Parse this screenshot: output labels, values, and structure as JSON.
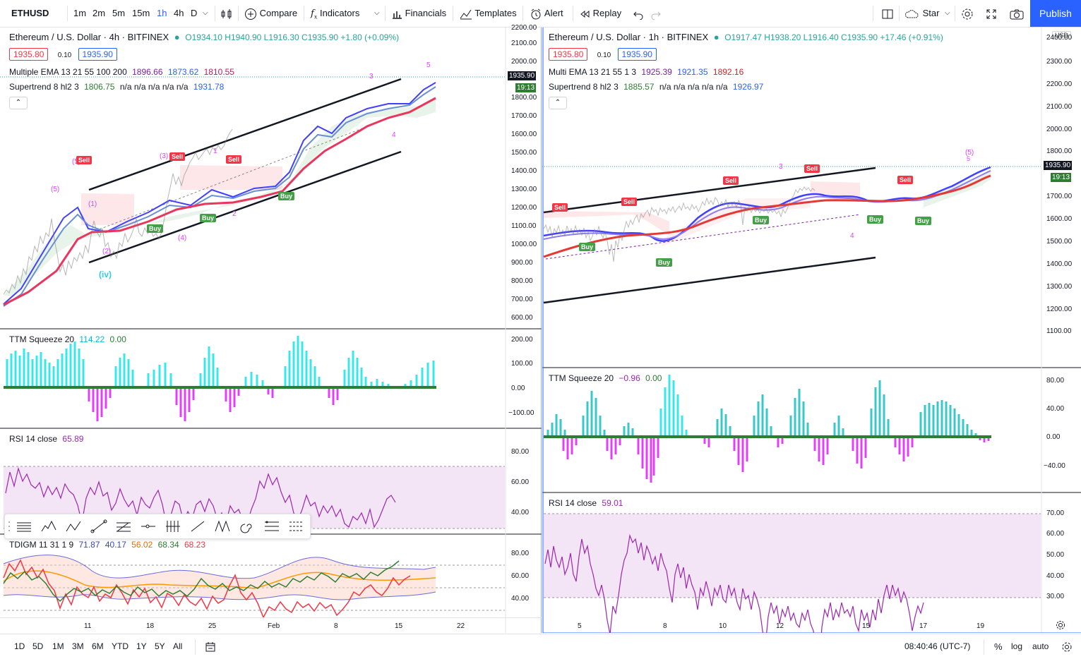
{
  "toolbar": {
    "symbol": "ETHUSD",
    "intervals": [
      "1m",
      "2m",
      "5m",
      "15m",
      "1h",
      "4h",
      "D"
    ],
    "active_interval": "1h",
    "compare": "Compare",
    "indicators": "Indicators",
    "financials": "Financials",
    "templates": "Templates",
    "alert": "Alert",
    "replay": "Replay",
    "star": "Star",
    "publish": "Publish"
  },
  "left_chart": {
    "title": "Ethereum / U.S. Dollar · 4h · BITFINEX",
    "ohlc": "O1934.10 H1940.90 L1916.30 C1935.90 +1.80 (+0.09%)",
    "bid": "1935.80",
    "spread": "0.10",
    "ask": "1935.90",
    "ema_label": "Multiple EMA 13 21 55 100 200",
    "ema_values": [
      "1896.66",
      "1873.62",
      "1810.55"
    ],
    "supertrend_label": "Supertrend 8 hl2 3",
    "supertrend_values": "1806.75",
    "supertrend_na": "n/a n/a n/a n/a n/a",
    "supertrend_last": "1931.78",
    "price_tag": "1935.90",
    "time_tag": "19:13",
    "yaxis": [
      "2200.00",
      "2100.00",
      "2000.00",
      "1800.00",
      "1700.00",
      "1600.00",
      "1500.00",
      "1400.00",
      "1300.00",
      "1200.00",
      "1100.00",
      "1000.00",
      "900.00",
      "800.00",
      "700.00",
      "600.00"
    ],
    "ttm_label": "TTM Squeeze 20",
    "ttm_v1": "114.22",
    "ttm_v2": "0.00",
    "ttm_axis": [
      "200.00",
      "100.00",
      "0.00",
      "−100.00"
    ],
    "rsi_label": "RSI 14 close",
    "rsi_value": "65.89",
    "rsi_axis": [
      "80.00",
      "60.00",
      "40.00"
    ],
    "tdi_label": "TDIGM 11 31 1 9",
    "tdi_values": [
      "71.87",
      "40.17",
      "56.02",
      "68.34",
      "68.23"
    ],
    "tdi_axis": [
      "80.00",
      "60.00",
      "40.00"
    ],
    "xaxis": [
      "11",
      "18",
      "25",
      "Feb",
      "8",
      "15",
      "22"
    ],
    "waves": [
      "(5)",
      "(5)",
      "(iv)",
      "(1)",
      "(2)",
      "(3)",
      "(4)",
      "1",
      "2",
      "3",
      "4",
      "5"
    ],
    "signals": {
      "sell": "Sell",
      "buy": "Buy"
    }
  },
  "right_chart": {
    "title": "Ethereum / U.S. Dollar · 1h · BITFINEX",
    "ohlc": "O1917.47 H1938.20 L1916.40 C1935.90 +17.46 (+0.91%)",
    "bid": "1935.80",
    "spread": "0.10",
    "ask": "1935.90",
    "ema_label": "Multi EMA 13 21 55 1 3",
    "ema_values": [
      "1925.39",
      "1921.35",
      "1892.16"
    ],
    "supertrend_label": "Supertrend 8 hl2 3",
    "supertrend_values": "1885.57",
    "supertrend_na": "n/a n/a n/a n/a n/a",
    "supertrend_last": "1926.97",
    "currency": "USD",
    "price_tag": "1935.90",
    "time_tag": "19:13",
    "yaxis": [
      "2400.00",
      "2300.00",
      "2200.00",
      "2100.00",
      "2000.00",
      "1800.00",
      "1700.00",
      "1600.00",
      "1500.00",
      "1400.00",
      "1300.00",
      "1200.00",
      "1100.00"
    ],
    "ttm_label": "TTM Squeeze 20",
    "ttm_v1": "−0.96",
    "ttm_v2": "0.00",
    "ttm_axis": [
      "80.00",
      "40.00",
      "0.00",
      "−40.00"
    ],
    "rsi_label": "RSI 14 close",
    "rsi_value": "59.01",
    "rsi_axis": [
      "70.00",
      "60.00",
      "50.00",
      "40.00",
      "30.00"
    ],
    "xaxis": [
      "5",
      "8",
      "10",
      "12",
      "15",
      "17",
      "19"
    ],
    "waves": [
      "3",
      "4",
      "(5)",
      "5"
    ],
    "signals": {
      "sell": "Sell",
      "buy": "Buy"
    }
  },
  "bottombar": {
    "ranges": [
      "1D",
      "5D",
      "1M",
      "3M",
      "6M",
      "YTD",
      "1Y",
      "5Y",
      "All"
    ],
    "clock": "08:40:46 (UTC-7)",
    "percent": "%",
    "log": "log",
    "auto": "auto"
  },
  "colors": {
    "accent": "#2962ff",
    "ema_fast": "#4040ff",
    "ema_mid": "#6a8fd8",
    "ema_slow": "#e8365d",
    "sell": "#f23645",
    "buy": "#43a047",
    "ttm_up": "#38e8e8",
    "ttm_down": "#e040fb",
    "rsi": "#9c27b0"
  }
}
